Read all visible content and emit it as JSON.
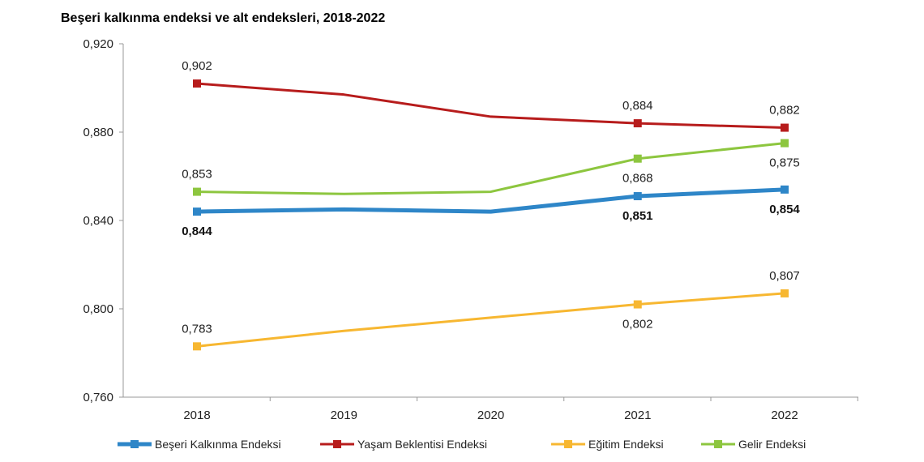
{
  "chart_data": {
    "type": "line",
    "title": "Beşeri kalkınma endeksi ve alt endeksleri, 2018-2022",
    "xlabel": "",
    "ylabel": "",
    "categories": [
      "2018",
      "2019",
      "2020",
      "2021",
      "2022"
    ],
    "ylim": [
      0.76,
      0.92
    ],
    "yticks": [
      "0,760",
      "0,800",
      "0,840",
      "0,880",
      "0,920"
    ],
    "grid": false,
    "legend": "bottom",
    "series": [
      {
        "name": "Beşeri Kalkınma Endeksi",
        "color": "#2E86C8",
        "values": [
          0.844,
          0.845,
          0.844,
          0.851,
          0.854
        ],
        "labels": [
          "0,844",
          "",
          "",
          "0,851",
          "0,854"
        ],
        "label_pos": "below",
        "bold": true
      },
      {
        "name": "Yaşam Beklentisi Endeksi",
        "color": "#B71C1C",
        "values": [
          0.902,
          0.897,
          0.887,
          0.884,
          0.882
        ],
        "labels": [
          "0,902",
          "",
          "",
          "0,884",
          "0,882"
        ],
        "label_pos": "above",
        "bold": false
      },
      {
        "name": "Eğitim Endeksi",
        "color": "#F7B731",
        "values": [
          0.783,
          0.79,
          0.796,
          0.802,
          0.807
        ],
        "labels": [
          "0,783",
          "",
          "",
          "0,802",
          "0,807"
        ],
        "label_pos": [
          "above",
          "",
          "",
          "below",
          "above"
        ],
        "bold": false
      },
      {
        "name": "Gelir Endeksi",
        "color": "#8DC63F",
        "values": [
          0.853,
          0.852,
          0.853,
          0.868,
          0.875
        ],
        "labels": [
          "0,853",
          "",
          "",
          "0,868",
          "0,875"
        ],
        "label_pos": [
          "above",
          "",
          "",
          "below",
          "below"
        ],
        "bold": false
      }
    ]
  }
}
